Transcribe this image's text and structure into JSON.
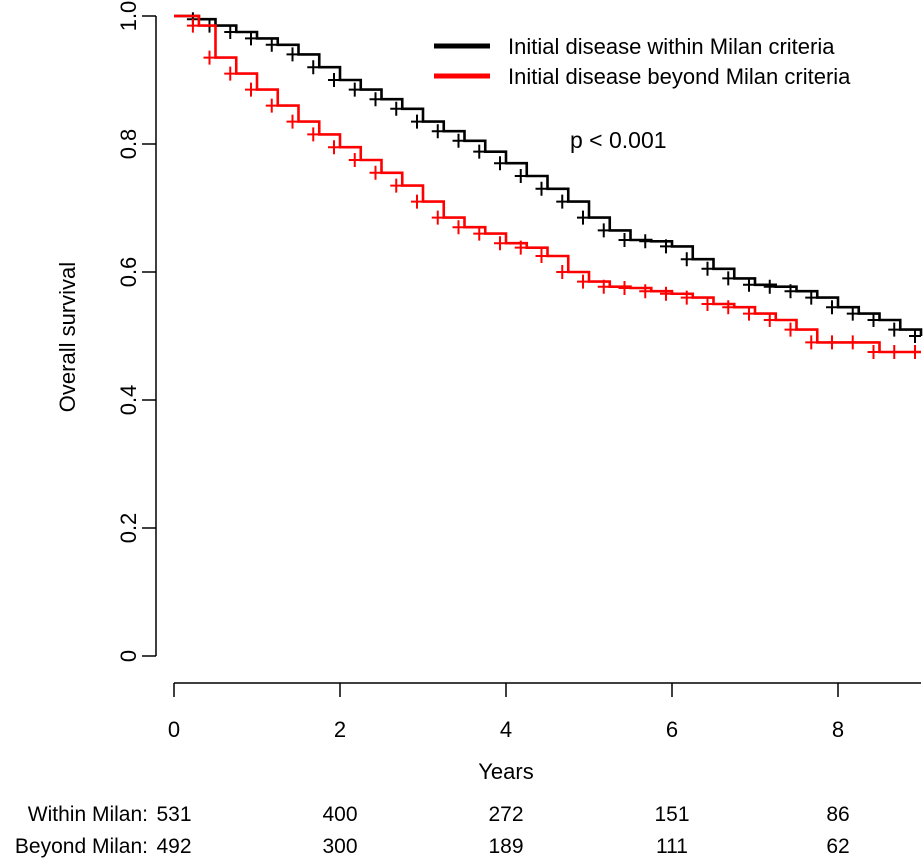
{
  "chart_data": {
    "type": "line",
    "subtype": "kaplan-meier",
    "title": "",
    "xlabel": "Years",
    "ylabel": "Overall survival",
    "xlim": [
      0,
      9
    ],
    "ylim": [
      0,
      1.0
    ],
    "x_ticks": [
      0,
      2,
      4,
      6,
      8
    ],
    "y_ticks": [
      0,
      0.2,
      0.4,
      0.6,
      0.8,
      1.0
    ],
    "x_tick_labels": [
      "0",
      "2",
      "4",
      "6",
      "8"
    ],
    "y_tick_labels": [
      "0",
      "0.2",
      "0.4",
      "0.6",
      "0.8",
      "1.0"
    ],
    "annotation": "p < 0.001",
    "legend_position": "top-right",
    "series": [
      {
        "name": "Initial disease within Milan criteria",
        "color": "#000000",
        "x": [
          0,
          0.3,
          0.5,
          0.75,
          1.0,
          1.25,
          1.5,
          1.75,
          2.0,
          2.25,
          2.5,
          2.75,
          3.0,
          3.25,
          3.5,
          3.75,
          4.0,
          4.25,
          4.5,
          4.75,
          5.0,
          5.25,
          5.5,
          5.75,
          6.0,
          6.25,
          6.5,
          6.75,
          7.0,
          7.25,
          7.5,
          7.75,
          8.0,
          8.25,
          8.5,
          8.75,
          9.0
        ],
        "y": [
          1.0,
          0.995,
          0.985,
          0.975,
          0.965,
          0.955,
          0.94,
          0.92,
          0.9,
          0.885,
          0.87,
          0.855,
          0.835,
          0.82,
          0.805,
          0.788,
          0.77,
          0.75,
          0.73,
          0.71,
          0.685,
          0.665,
          0.65,
          0.648,
          0.64,
          0.62,
          0.605,
          0.59,
          0.58,
          0.577,
          0.57,
          0.56,
          0.545,
          0.535,
          0.525,
          0.51,
          0.5
        ]
      },
      {
        "name": "Initial disease beyond Milan criteria",
        "color": "#ff0000",
        "x": [
          0,
          0.3,
          0.5,
          0.75,
          1.0,
          1.25,
          1.5,
          1.75,
          2.0,
          2.25,
          2.5,
          2.75,
          3.0,
          3.25,
          3.5,
          3.75,
          4.0,
          4.25,
          4.5,
          4.75,
          5.0,
          5.25,
          5.5,
          5.75,
          6.0,
          6.25,
          6.5,
          6.75,
          7.0,
          7.25,
          7.5,
          7.75,
          8.0,
          8.25,
          8.5,
          8.75,
          9.0
        ],
        "y": [
          1.0,
          0.985,
          0.935,
          0.91,
          0.885,
          0.86,
          0.835,
          0.815,
          0.795,
          0.775,
          0.755,
          0.735,
          0.71,
          0.685,
          0.67,
          0.66,
          0.645,
          0.638,
          0.625,
          0.6,
          0.585,
          0.577,
          0.575,
          0.57,
          0.566,
          0.56,
          0.55,
          0.545,
          0.535,
          0.525,
          0.51,
          0.49,
          0.49,
          0.49,
          0.475,
          0.475,
          0.475
        ]
      }
    ],
    "risk_table": {
      "x": [
        0,
        2,
        4,
        6,
        8
      ],
      "rows": [
        {
          "label": "Within Milan:",
          "values": [
            531,
            400,
            272,
            151,
            86
          ]
        },
        {
          "label": "Beyond Milan:",
          "values": [
            492,
            300,
            189,
            111,
            62
          ]
        }
      ]
    }
  }
}
